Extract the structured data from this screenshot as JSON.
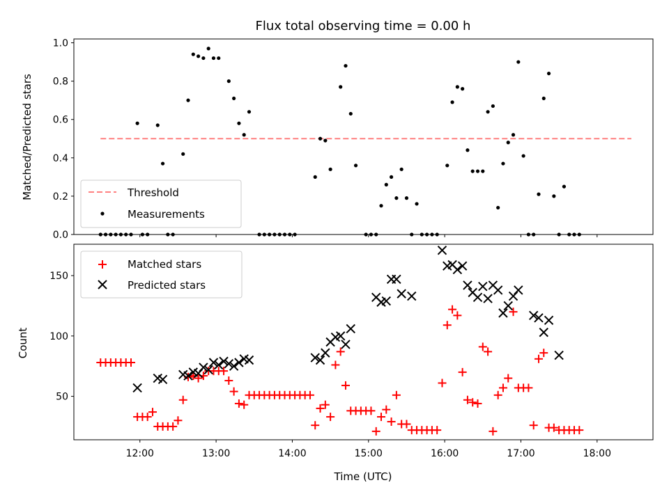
{
  "figure": {
    "title": "Flux total observing time = 0.00 h",
    "xlabel": "Time (UTC)"
  },
  "chart_data": [
    {
      "type": "scatter",
      "panel": "top",
      "ylabel": "Matched/Predicted stars",
      "xlim": [
        "11:08",
        "18:44"
      ],
      "ylim": [
        0,
        1.02
      ],
      "yticks": [
        0.0,
        0.2,
        0.4,
        0.6,
        0.8,
        1.0
      ],
      "ytick_labels": [
        "0.0",
        "0.2",
        "0.4",
        "0.6",
        "0.8",
        "1.0"
      ],
      "legend_position": "lower-left",
      "grid": false,
      "threshold": {
        "name": "Threshold",
        "value": 0.5,
        "x_range": [
          "11:29",
          "18:27"
        ],
        "color": "#ff8080",
        "style": "dashed"
      },
      "series": [
        {
          "name": "Measurements",
          "marker": "dot",
          "color": "#000000",
          "points": [
            [
              "11:29",
              0
            ],
            [
              "11:33",
              0
            ],
            [
              "11:37",
              0
            ],
            [
              "11:41",
              0
            ],
            [
              "11:45",
              0
            ],
            [
              "11:49",
              0
            ],
            [
              "11:53",
              0
            ],
            [
              "11:58",
              0.58
            ],
            [
              "12:02",
              0
            ],
            [
              "12:06",
              0
            ],
            [
              "12:14",
              0.57
            ],
            [
              "12:18",
              0.37
            ],
            [
              "12:22",
              0
            ],
            [
              "12:26",
              0
            ],
            [
              "12:34",
              0.42
            ],
            [
              "12:38",
              0.7
            ],
            [
              "12:42",
              0.94
            ],
            [
              "12:46",
              0.93
            ],
            [
              "12:50",
              0.92
            ],
            [
              "12:54",
              0.97
            ],
            [
              "12:58",
              0.92
            ],
            [
              "13:02",
              0.92
            ],
            [
              "13:10",
              0.8
            ],
            [
              "13:14",
              0.71
            ],
            [
              "13:18",
              0.58
            ],
            [
              "13:22",
              0.52
            ],
            [
              "13:26",
              0.64
            ],
            [
              "13:34",
              0
            ],
            [
              "13:38",
              0
            ],
            [
              "13:42",
              0
            ],
            [
              "13:46",
              0
            ],
            [
              "13:50",
              0
            ],
            [
              "13:54",
              0
            ],
            [
              "13:58",
              0
            ],
            [
              "14:02",
              0
            ],
            [
              "14:18",
              0.3
            ],
            [
              "14:22",
              0.5
            ],
            [
              "14:26",
              0.49
            ],
            [
              "14:30",
              0.34
            ],
            [
              "14:38",
              0.77
            ],
            [
              "14:42",
              0.88
            ],
            [
              "14:46",
              0.63
            ],
            [
              "14:50",
              0.36
            ],
            [
              "14:58",
              0
            ],
            [
              "15:02",
              0
            ],
            [
              "15:06",
              0
            ],
            [
              "15:10",
              0.15
            ],
            [
              "15:14",
              0.26
            ],
            [
              "15:18",
              0.3
            ],
            [
              "15:22",
              0.19
            ],
            [
              "15:26",
              0.34
            ],
            [
              "15:30",
              0.19
            ],
            [
              "15:34",
              0
            ],
            [
              "15:38",
              0.16
            ],
            [
              "15:42",
              0
            ],
            [
              "15:46",
              0
            ],
            [
              "15:50",
              0
            ],
            [
              "15:54",
              0
            ],
            [
              "16:02",
              0.36
            ],
            [
              "16:06",
              0.69
            ],
            [
              "16:10",
              0.77
            ],
            [
              "16:14",
              0.76
            ],
            [
              "16:18",
              0.44
            ],
            [
              "16:22",
              0.33
            ],
            [
              "16:26",
              0.33
            ],
            [
              "16:30",
              0.33
            ],
            [
              "16:34",
              0.64
            ],
            [
              "16:38",
              0.67
            ],
            [
              "16:42",
              0.14
            ],
            [
              "16:46",
              0.37
            ],
            [
              "16:50",
              0.48
            ],
            [
              "16:54",
              0.52
            ],
            [
              "16:58",
              0.9
            ],
            [
              "17:02",
              0.41
            ],
            [
              "17:06",
              0
            ],
            [
              "17:10",
              0
            ],
            [
              "17:14",
              0.21
            ],
            [
              "17:18",
              0.71
            ],
            [
              "17:22",
              0.84
            ],
            [
              "17:26",
              0.2
            ],
            [
              "17:30",
              0
            ],
            [
              "17:34",
              0.25
            ],
            [
              "17:38",
              0
            ],
            [
              "17:42",
              0
            ],
            [
              "17:46",
              0
            ]
          ]
        }
      ]
    },
    {
      "type": "scatter",
      "panel": "bottom",
      "ylabel": "Count",
      "xlabel": "Time (UTC)",
      "xlim": [
        "11:08",
        "18:44"
      ],
      "ylim": [
        14,
        176
      ],
      "yticks": [
        50,
        100,
        150
      ],
      "ytick_labels": [
        "50",
        "100",
        "150"
      ],
      "xticks": [
        "12:00",
        "13:00",
        "14:00",
        "15:00",
        "16:00",
        "17:00",
        "18:00"
      ],
      "xtick_labels": [
        "12:00",
        "13:00",
        "14:00",
        "15:00",
        "16:00",
        "17:00",
        "18:00"
      ],
      "legend_position": "upper-left",
      "grid": false,
      "series": [
        {
          "name": "Matched stars",
          "marker": "plus",
          "color": "#ff0000",
          "points": [
            [
              "11:29",
              78
            ],
            [
              "11:33",
              78
            ],
            [
              "11:37",
              78
            ],
            [
              "11:41",
              78
            ],
            [
              "11:45",
              78
            ],
            [
              "11:49",
              78
            ],
            [
              "11:53",
              78
            ],
            [
              "11:58",
              33
            ],
            [
              "12:02",
              33
            ],
            [
              "12:06",
              33
            ],
            [
              "12:10",
              37
            ],
            [
              "12:14",
              25
            ],
            [
              "12:18",
              25
            ],
            [
              "12:22",
              25
            ],
            [
              "12:26",
              25
            ],
            [
              "12:30",
              30
            ],
            [
              "12:34",
              47
            ],
            [
              "12:38",
              66
            ],
            [
              "12:42",
              67
            ],
            [
              "12:46",
              65
            ],
            [
              "12:50",
              67
            ],
            [
              "12:54",
              71
            ],
            [
              "12:58",
              71
            ],
            [
              "13:02",
              71
            ],
            [
              "13:06",
              71
            ],
            [
              "13:10",
              63
            ],
            [
              "13:14",
              54
            ],
            [
              "13:18",
              44
            ],
            [
              "13:22",
              43
            ],
            [
              "13:26",
              51
            ],
            [
              "13:30",
              51
            ],
            [
              "13:34",
              51
            ],
            [
              "13:38",
              51
            ],
            [
              "13:42",
              51
            ],
            [
              "13:46",
              51
            ],
            [
              "13:50",
              51
            ],
            [
              "13:54",
              51
            ],
            [
              "13:58",
              51
            ],
            [
              "14:02",
              51
            ],
            [
              "14:06",
              51
            ],
            [
              "14:10",
              51
            ],
            [
              "14:14",
              51
            ],
            [
              "14:18",
              26
            ],
            [
              "14:22",
              40
            ],
            [
              "14:26",
              43
            ],
            [
              "14:30",
              33
            ],
            [
              "14:34",
              76
            ],
            [
              "14:38",
              87
            ],
            [
              "14:42",
              59
            ],
            [
              "14:46",
              38
            ],
            [
              "14:50",
              38
            ],
            [
              "14:54",
              38
            ],
            [
              "14:58",
              38
            ],
            [
              "15:02",
              38
            ],
            [
              "15:06",
              21
            ],
            [
              "15:10",
              33
            ],
            [
              "15:14",
              39
            ],
            [
              "15:18",
              29
            ],
            [
              "15:22",
              51
            ],
            [
              "15:26",
              27
            ],
            [
              "15:30",
              27
            ],
            [
              "15:34",
              22
            ],
            [
              "15:38",
              22
            ],
            [
              "15:42",
              22
            ],
            [
              "15:46",
              22
            ],
            [
              "15:50",
              22
            ],
            [
              "15:54",
              22
            ],
            [
              "15:58",
              61
            ],
            [
              "16:02",
              109
            ],
            [
              "16:06",
              122
            ],
            [
              "16:10",
              117
            ],
            [
              "16:14",
              70
            ],
            [
              "16:18",
              47
            ],
            [
              "16:22",
              45
            ],
            [
              "16:26",
              44
            ],
            [
              "16:30",
              91
            ],
            [
              "16:34",
              87
            ],
            [
              "16:38",
              21
            ],
            [
              "16:42",
              51
            ],
            [
              "16:46",
              57
            ],
            [
              "16:50",
              65
            ],
            [
              "16:54",
              120
            ],
            [
              "16:58",
              57
            ],
            [
              "17:02",
              57
            ],
            [
              "17:06",
              57
            ],
            [
              "17:10",
              26
            ],
            [
              "17:14",
              81
            ],
            [
              "17:18",
              86
            ],
            [
              "17:22",
              24
            ],
            [
              "17:26",
              24
            ],
            [
              "17:30",
              22
            ],
            [
              "17:34",
              22
            ],
            [
              "17:38",
              22
            ],
            [
              "17:42",
              22
            ],
            [
              "17:46",
              22
            ]
          ]
        },
        {
          "name": "Predicted stars",
          "marker": "x",
          "color": "#000000",
          "points": [
            [
              "11:58",
              57
            ],
            [
              "12:14",
              65
            ],
            [
              "12:18",
              64
            ],
            [
              "12:34",
              68
            ],
            [
              "12:38",
              67
            ],
            [
              "12:42",
              70
            ],
            [
              "12:46",
              69
            ],
            [
              "12:50",
              74
            ],
            [
              "12:54",
              72
            ],
            [
              "12:58",
              78
            ],
            [
              "13:02",
              76
            ],
            [
              "13:06",
              79
            ],
            [
              "13:10",
              77
            ],
            [
              "13:14",
              75
            ],
            [
              "13:18",
              78
            ],
            [
              "13:22",
              81
            ],
            [
              "13:26",
              80
            ],
            [
              "14:18",
              82
            ],
            [
              "14:22",
              80
            ],
            [
              "14:26",
              86
            ],
            [
              "14:30",
              95
            ],
            [
              "14:34",
              99
            ],
            [
              "14:38",
              100
            ],
            [
              "14:42",
              93
            ],
            [
              "14:46",
              106
            ],
            [
              "15:06",
              132
            ],
            [
              "15:10",
              128
            ],
            [
              "15:14",
              129
            ],
            [
              "15:18",
              147
            ],
            [
              "15:22",
              147
            ],
            [
              "15:26",
              135
            ],
            [
              "15:34",
              133
            ],
            [
              "15:58",
              171
            ],
            [
              "16:02",
              158
            ],
            [
              "16:06",
              159
            ],
            [
              "16:10",
              155
            ],
            [
              "16:14",
              158
            ],
            [
              "16:18",
              142
            ],
            [
              "16:22",
              136
            ],
            [
              "16:26",
              132
            ],
            [
              "16:30",
              141
            ],
            [
              "16:34",
              131
            ],
            [
              "16:38",
              142
            ],
            [
              "16:42",
              138
            ],
            [
              "16:46",
              119
            ],
            [
              "16:50",
              125
            ],
            [
              "16:54",
              133
            ],
            [
              "16:58",
              138
            ],
            [
              "17:10",
              117
            ],
            [
              "17:14",
              115
            ],
            [
              "17:18",
              103
            ],
            [
              "17:22",
              113
            ],
            [
              "17:30",
              84
            ]
          ]
        }
      ]
    }
  ]
}
